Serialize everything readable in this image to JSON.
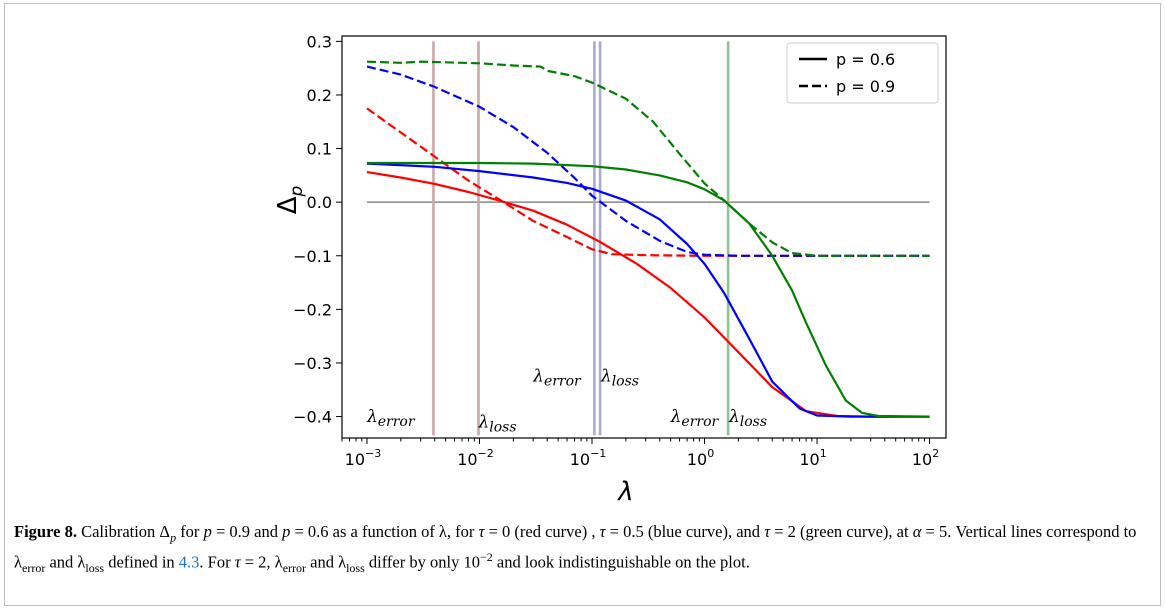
{
  "chart_data": {
    "type": "line",
    "xscale": "log",
    "xlim": [
      0.0006,
      140
    ],
    "ylim": [
      -0.44,
      0.31
    ],
    "xlabel": "λ",
    "ylabel": "Δp",
    "xticks": [
      0.001,
      0.01,
      0.1,
      1,
      10,
      100
    ],
    "xtick_labels": [
      {
        "base": "10",
        "exp": "−3"
      },
      {
        "base": "10",
        "exp": "−2"
      },
      {
        "base": "10",
        "exp": "−1"
      },
      {
        "base": "10",
        "exp": "0"
      },
      {
        "base": "10",
        "exp": "1"
      },
      {
        "base": "10",
        "exp": "2"
      }
    ],
    "yticks": [
      0.3,
      0.2,
      0.1,
      0.0,
      -0.1,
      -0.2,
      -0.3,
      -0.4
    ],
    "ytick_labels": [
      "0.3",
      "0.2",
      "0.1",
      "0.0",
      "−0.1",
      "−0.2",
      "−0.3",
      "−0.4"
    ],
    "legend": {
      "position": "upper right",
      "entries": [
        {
          "label": "p = 0.6",
          "style": "solid"
        },
        {
          "label": "p = 0.9",
          "style": "dashed"
        }
      ]
    },
    "series": [
      {
        "color": "#ff0000",
        "style": "solid",
        "x": [
          0.001,
          0.002,
          0.004,
          0.008,
          0.015,
          0.03,
          0.06,
          0.12,
          0.25,
          0.5,
          1,
          2,
          4,
          8,
          15,
          30,
          100
        ],
        "y": [
          0.056,
          0.046,
          0.034,
          0.019,
          0.003,
          -0.016,
          -0.042,
          -0.075,
          -0.115,
          -0.16,
          -0.215,
          -0.28,
          -0.345,
          -0.39,
          -0.399,
          -0.4,
          -0.4
        ]
      },
      {
        "color": "#ff0000",
        "style": "dashed",
        "x": [
          0.001,
          0.002,
          0.004,
          0.008,
          0.015,
          0.03,
          0.06,
          0.1,
          0.15,
          0.3,
          1,
          10,
          100
        ],
        "y": [
          0.175,
          0.13,
          0.085,
          0.04,
          0.005,
          -0.035,
          -0.065,
          -0.088,
          -0.097,
          -0.099,
          -0.1,
          -0.1,
          -0.1
        ]
      },
      {
        "color": "#0000ff",
        "style": "solid",
        "x": [
          0.001,
          0.004,
          0.01,
          0.03,
          0.06,
          0.1,
          0.2,
          0.4,
          0.7,
          1,
          1.5,
          2.5,
          4,
          7,
          10,
          20,
          100
        ],
        "y": [
          0.072,
          0.066,
          0.058,
          0.046,
          0.036,
          0.025,
          0.003,
          -0.032,
          -0.078,
          -0.115,
          -0.17,
          -0.255,
          -0.335,
          -0.385,
          -0.398,
          -0.4,
          -0.4
        ]
      },
      {
        "color": "#0000ff",
        "style": "dashed",
        "x": [
          0.001,
          0.002,
          0.004,
          0.01,
          0.02,
          0.04,
          0.07,
          0.1,
          0.2,
          0.4,
          0.7,
          1,
          2,
          10,
          100
        ],
        "y": [
          0.253,
          0.238,
          0.215,
          0.178,
          0.14,
          0.092,
          0.045,
          0.012,
          -0.035,
          -0.072,
          -0.093,
          -0.098,
          -0.1,
          -0.1,
          -0.1
        ]
      },
      {
        "color": "#008000",
        "style": "solid",
        "x": [
          0.001,
          0.01,
          0.03,
          0.1,
          0.2,
          0.4,
          0.7,
          1,
          1.5,
          2.5,
          4,
          6,
          8,
          12,
          18,
          25,
          35,
          100
        ],
        "y": [
          0.073,
          0.073,
          0.072,
          0.067,
          0.061,
          0.05,
          0.037,
          0.024,
          0.003,
          -0.04,
          -0.1,
          -0.165,
          -0.225,
          -0.305,
          -0.37,
          -0.393,
          -0.399,
          -0.4
        ]
      },
      {
        "color": "#008000",
        "style": "dashed",
        "x": [
          0.001,
          0.002,
          0.003,
          0.005,
          0.01,
          0.02,
          0.035,
          0.04,
          0.07,
          0.1,
          0.2,
          0.35,
          0.6,
          1,
          1.5,
          2.5,
          4,
          6,
          10,
          100
        ],
        "y": [
          0.262,
          0.26,
          0.262,
          0.261,
          0.259,
          0.255,
          0.253,
          0.245,
          0.235,
          0.223,
          0.193,
          0.15,
          0.09,
          0.035,
          0.003,
          -0.04,
          -0.075,
          -0.095,
          -0.1,
          -0.1
        ]
      }
    ],
    "reference_lines": [
      {
        "type": "h",
        "y": 0.0,
        "color": "#888888"
      },
      {
        "type": "v",
        "x": 0.0039,
        "color": "#c9a8a8"
      },
      {
        "type": "v",
        "x": 0.0098,
        "color": "#c9a8a8"
      },
      {
        "type": "v",
        "x": 0.105,
        "color": "#aaaacc"
      },
      {
        "type": "v",
        "x": 0.118,
        "color": "#aaaacc"
      },
      {
        "type": "v",
        "x": 1.62,
        "color": "#8fc48f"
      }
    ],
    "annotations": [
      {
        "base": "λ",
        "sub": "error",
        "x": 0.001,
        "y": -0.41
      },
      {
        "base": "λ",
        "sub": "loss",
        "x": 0.0098,
        "y": -0.42
      },
      {
        "base": "λ",
        "sub": "error",
        "x": 0.03,
        "y": -0.335
      },
      {
        "base": "λ",
        "sub": "loss",
        "x": 0.12,
        "y": -0.335
      },
      {
        "base": "λ",
        "sub": "error",
        "x": 0.5,
        "y": -0.41
      },
      {
        "base": "λ",
        "sub": "loss",
        "x": 1.65,
        "y": -0.41
      }
    ]
  },
  "caption": {
    "figure_label": "Figure 8.",
    "segments": [
      " Calibration Δ",
      "p",
      " for ",
      "p",
      " = 0.9 and ",
      "p",
      " = 0.6 as a function of λ, for ",
      "τ",
      " = 0 (red curve) , ",
      "τ",
      " = 0.5 (blue curve), and ",
      "τ",
      " = 2 (green curve), at ",
      "α",
      " = 5. Vertical lines correspond to λ",
      "error",
      " and λ",
      "loss",
      " defined in ",
      "4.3",
      ". For ",
      "τ",
      " = 2, λ",
      "error",
      " and λ",
      "loss",
      " differ by only 10",
      "−2",
      " and look indistinguishable on the plot."
    ]
  }
}
